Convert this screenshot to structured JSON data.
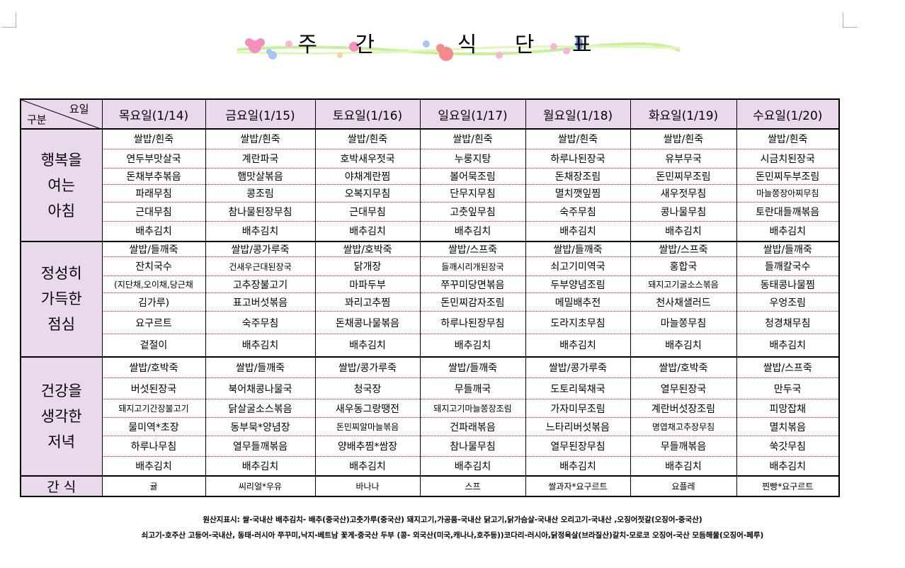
{
  "title": "주 간   식 단 표",
  "header": {
    "corner_day": "요일",
    "corner_category": "구분",
    "days": [
      "목요일(1/14)",
      "금요일(1/15)",
      "토요일(1/16)",
      "일요일(1/17)",
      "월요일(1/18)",
      "화요일(1/19)",
      "수요일(1/20)"
    ]
  },
  "meals": [
    {
      "label_lines": [
        "행복을",
        "여는",
        "아침"
      ],
      "rows": [
        [
          "쌀밥/흰죽",
          "쌀밥/흰죽",
          "쌀밥/흰죽",
          "쌀밥/흰죽",
          "쌀밥/흰죽",
          "쌀밥/흰죽",
          "쌀밥/흰죽"
        ],
        [
          "연두부맛살국",
          "계란파국",
          "호박새우젓국",
          "누룽지탕",
          "하루나된장국",
          "유부무국",
          "시금치된장국"
        ],
        [
          "돈채부추볶음",
          "햄맛살볶음",
          "야채계란찜",
          "볼어묵조림",
          "돈채장조림",
          "돈민찌무조림",
          "돈민찌두부조림"
        ],
        [
          "파래무침",
          "콩조림",
          "오복지무침",
          "단무지무침",
          "멸치깻잎찜",
          "새우젓무침",
          "마늘쫑장아찌무침"
        ],
        [
          "근대무침",
          "참나물된장무침",
          "근대무침",
          "고춧잎무침",
          "숙주무침",
          "콩나물무침",
          "토란대들깨볶음"
        ],
        [
          "배추김치",
          "배추김치",
          "배추김치",
          "배추김치",
          "배추김치",
          "배추김치",
          "배추김치"
        ]
      ]
    },
    {
      "label_lines": [
        "정성히",
        "가득한",
        "점심"
      ],
      "rows": [
        [
          "쌀밥/들깨죽",
          "쌀밥/콩가루죽",
          "쌀밥/호박죽",
          "쌀밥/스프죽",
          "쌀밥/들깨죽",
          "쌀밥/스프죽",
          "쌀밥/들깨죽"
        ],
        [
          "잔치국수",
          "건새우근대된장국",
          "닭개장",
          "들깨시리개된장국",
          "쇠고기미역국",
          "홍합국",
          "들깨칼국수"
        ],
        [
          "(지단채,오이채,당근채",
          "고추장불고기",
          "마파두부",
          "쭈꾸미당면볶음",
          "두부양념조림",
          "돼지고기굴소스볶음",
          "동태콩나물찜"
        ],
        [
          "김가루)",
          "표고버섯볶음",
          "꽈리고추찜",
          "돈민찌감자조림",
          "메밀배추전",
          "천사채샐러드",
          "우엉조림"
        ],
        [
          "요구르트",
          "숙주무침",
          "돈채콩나물볶음",
          "하루나된장무침",
          "도라지초무침",
          "마늘쫑무침",
          "청경채무침"
        ],
        [
          "겉절이",
          "배추김치",
          "배추김치",
          "배추김치",
          "배추김치",
          "배추김치",
          "배추김치"
        ]
      ]
    },
    {
      "label_lines": [
        "건강을",
        "생각한",
        "저녁"
      ],
      "rows": [
        [
          "쌀밥/호박죽",
          "쌀밥/들깨죽",
          "쌀밥/콩가루죽",
          "쌀밥/들깨죽",
          "쌀밥/콩가루죽",
          "쌀밥/호박죽",
          "쌀밥/스프죽"
        ],
        [
          "버섯된장국",
          "북어채콩나물국",
          "청국장",
          "무들깨국",
          "도토리묵채국",
          "열무된장국",
          "만두국"
        ],
        [
          "돼지고기간장불고기",
          "닭살굴소스볶음",
          "새우동그랑땡전",
          "돼지고기마늘쫑장조림",
          "가자미무조림",
          "계란버섯장조림",
          "피망잡채"
        ],
        [
          "물미역*초장",
          "동부묵*양념장",
          "돈민찌알마늘볶음",
          "건파래볶음",
          "느타리버섯볶음",
          "명엽채고추장무침",
          "멸치볶음"
        ],
        [
          "하루나무침",
          "열무들깨볶음",
          "양배추찜*쌈장",
          "참나물무침",
          "열무된장무침",
          "무들깨볶음",
          "쑥갓무침"
        ],
        [
          "배추김치",
          "배추김치",
          "배추김치",
          "배추김치",
          "배추김치",
          "배추김치",
          "배추김치"
        ]
      ]
    }
  ],
  "snack": {
    "label": "간 식",
    "items": [
      "귤",
      "씨리얼*우유",
      "바나나",
      "스프",
      "쌀과자*요구르트",
      "요플레",
      "찐빵*요구르트"
    ]
  },
  "notes": [
    "원산지표시: 쌀-국내산   배추김치- 배추(중국산)고춧가루(중국산) 돼지고기,가공품-국내산 닭고기,닭가슴살-국내산 오리고기-국내산 ,오징어젓갈(오징어-중국산)",
    "쇠고기-호주산 고등어-국내산, 동태-러시아   쭈꾸미,낙지-베트남   꽃게-중국산   두부 (콩- 외국산(미국,캐나나,호주등))코다리-러시아,닭정육살(브라질산)갈치-모로코 오징어-국산 모듬해물(오징어-페루)"
  ],
  "colors": {
    "header_bg": "#ead8ec",
    "row_divider": "#e02020"
  }
}
